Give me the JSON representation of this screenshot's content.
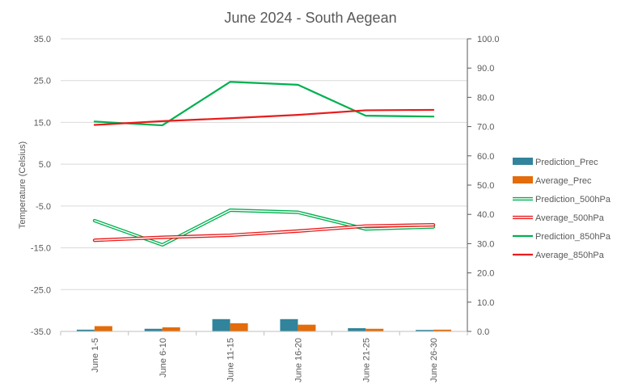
{
  "chart_data": {
    "type": "bar",
    "title": "June 2024 - South Aegean",
    "xlabel": "",
    "ylabel": "Temperature (Celsius)",
    "y2label": "",
    "categories": [
      "June 1-5",
      "June 6-10",
      "June 11-15",
      "June 16-20",
      "June 21-25",
      "June 26-30"
    ],
    "ylim": [
      -35,
      35
    ],
    "y2lim": [
      0,
      100
    ],
    "y_ticks": [
      "-35.0",
      "-25.0",
      "-15.0",
      "-5.0",
      "5.0",
      "15.0",
      "25.0",
      "35.0"
    ],
    "y2_ticks": [
      "0.0",
      "10.0",
      "20.0",
      "30.0",
      "40.0",
      "50.0",
      "60.0",
      "70.0",
      "80.0",
      "90.0",
      "100.0"
    ],
    "grid": true,
    "legend_position": "right",
    "series": [
      {
        "name": "Prediction_Prec",
        "kind": "bar",
        "axis": "right",
        "color": "#31849b",
        "values": [
          0.6,
          0.9,
          4.2,
          4.2,
          1.1,
          0.5
        ]
      },
      {
        "name": "Average_Prec",
        "kind": "bar",
        "axis": "right",
        "color": "#e46c0a",
        "values": [
          1.8,
          1.4,
          2.8,
          2.3,
          0.9,
          0.6
        ]
      },
      {
        "name": "Prediction_500hPa",
        "kind": "line",
        "style": "double",
        "axis": "left",
        "color": "#00b050",
        "values": [
          -8.5,
          -14.3,
          -6.0,
          -6.5,
          -10.5,
          -10.0
        ]
      },
      {
        "name": "Average_500hPa",
        "kind": "line",
        "style": "double",
        "axis": "left",
        "color": "#e81c1c",
        "values": [
          -13.2,
          -12.5,
          -12.0,
          -11.0,
          -9.8,
          -9.5
        ]
      },
      {
        "name": "Prediction_850hPa",
        "kind": "line",
        "style": "solid",
        "axis": "left",
        "color": "#00b050",
        "values": [
          15.2,
          14.3,
          24.7,
          24.0,
          16.6,
          16.4
        ]
      },
      {
        "name": "Average_850hPa",
        "kind": "line",
        "style": "solid",
        "axis": "left",
        "color": "#e81c1c",
        "values": [
          14.4,
          15.3,
          16.0,
          16.8,
          17.9,
          18.0
        ]
      }
    ]
  }
}
